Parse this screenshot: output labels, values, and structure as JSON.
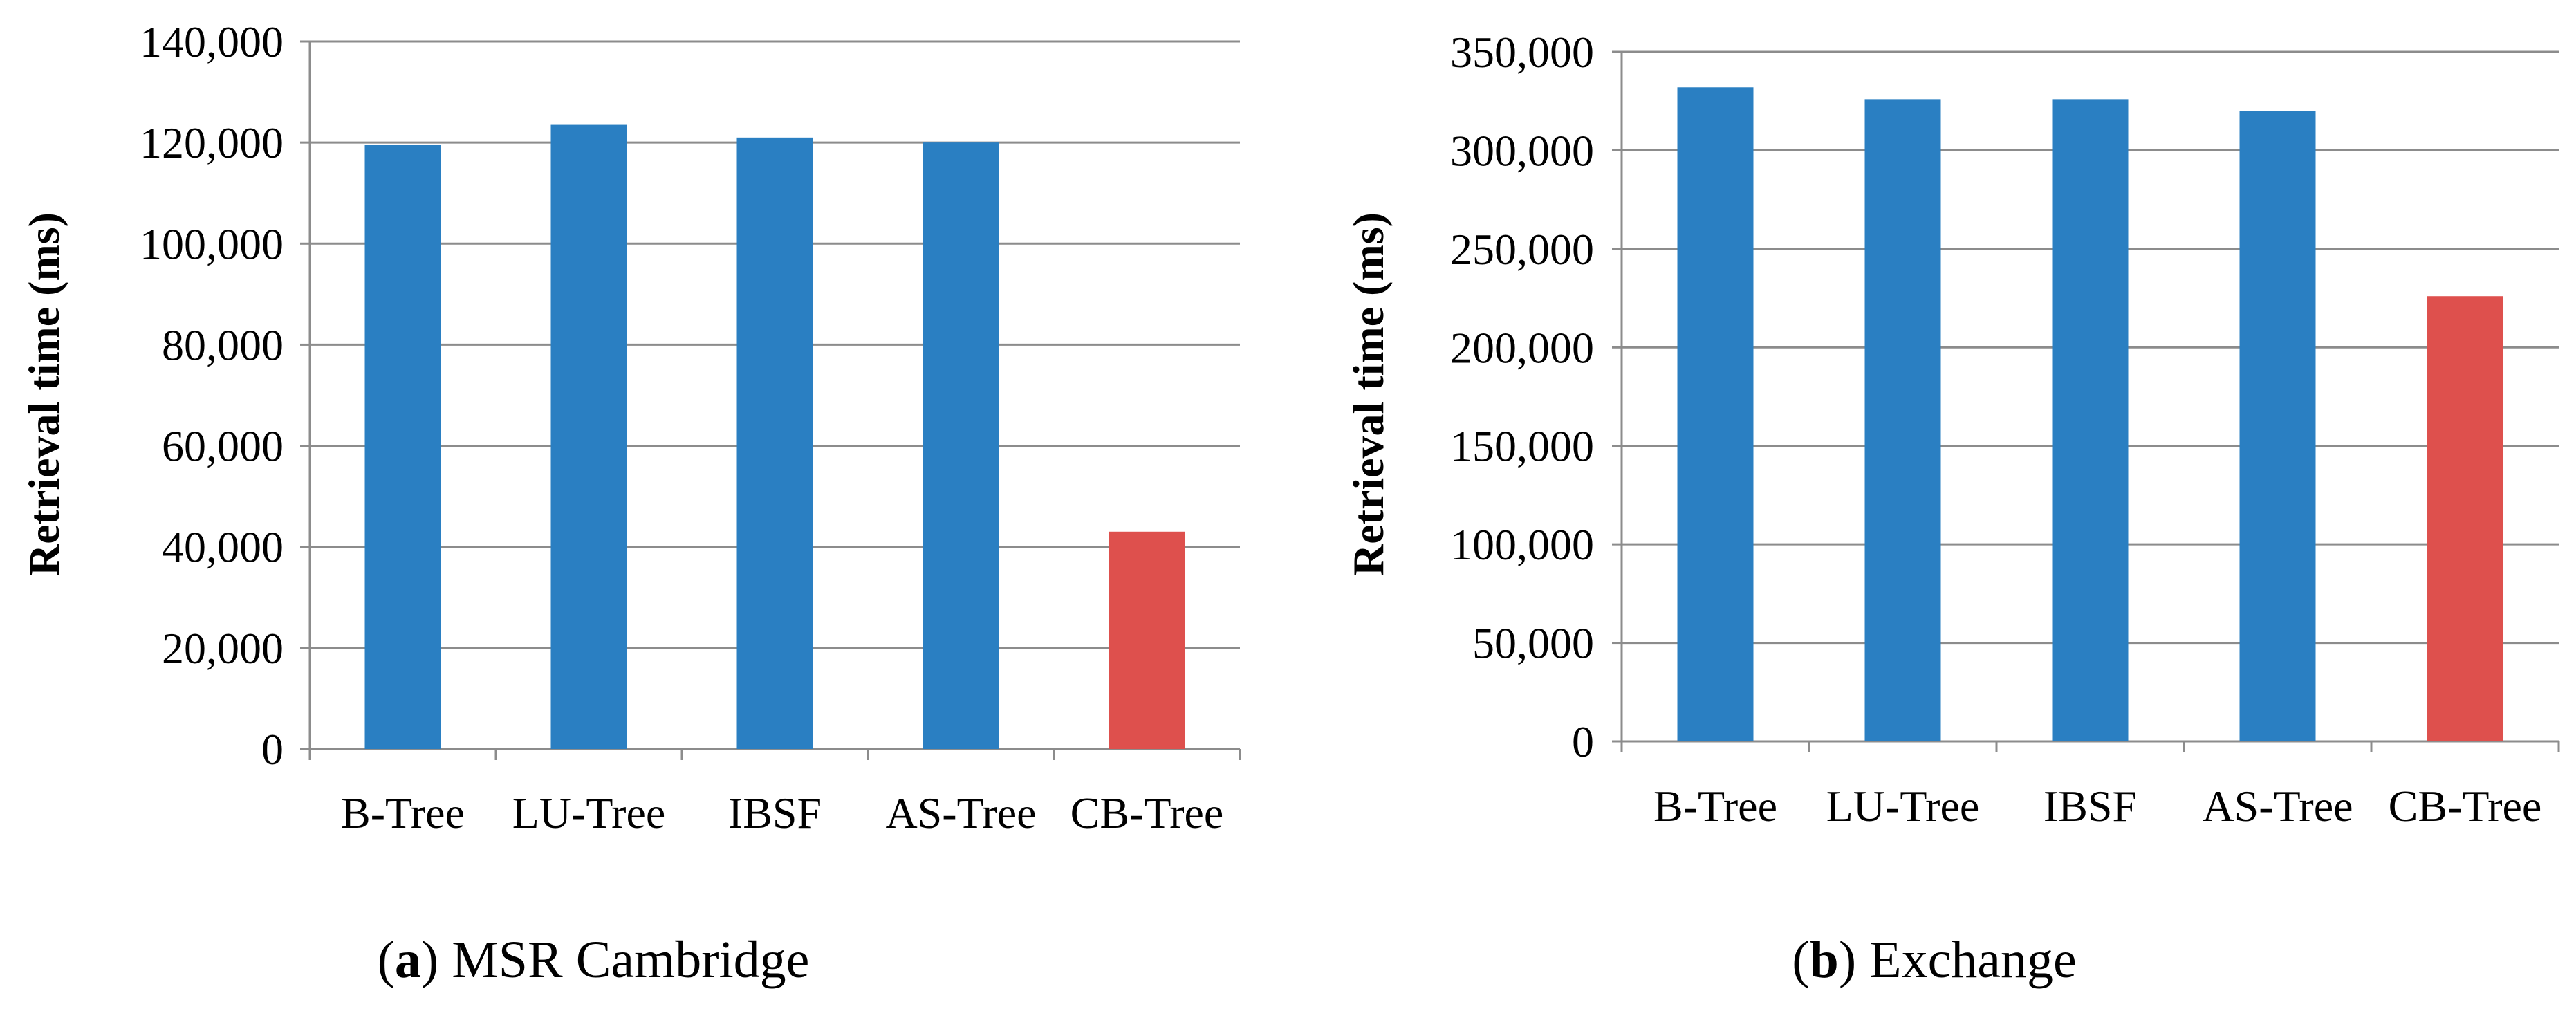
{
  "figure": {
    "panel_a": {
      "caption_open": "(",
      "caption_letter": "a",
      "caption_close": ")",
      "caption_text": " MSR Cambridge"
    },
    "panel_b": {
      "caption_open": "(",
      "caption_letter": "b",
      "caption_close": ")",
      "caption_text": " Exchange"
    }
  },
  "chart_data": [
    {
      "type": "bar",
      "title": "",
      "xlabel": "",
      "ylabel": "Retrieval time (ms)",
      "categories": [
        "B-Tree",
        "LU-Tree",
        "IBSF",
        "AS-Tree",
        "CB-Tree"
      ],
      "values": [
        119500,
        123500,
        121000,
        120000,
        43000
      ],
      "bar_colors": [
        "#2a7fc2",
        "#2a7fc2",
        "#2a7fc2",
        "#2a7fc2",
        "#de504d"
      ],
      "ylim": [
        0,
        140000
      ],
      "yticks": [
        0,
        20000,
        40000,
        60000,
        80000,
        100000,
        120000,
        140000
      ],
      "ytick_labels": [
        "0",
        "20,000",
        "40,000",
        "60,000",
        "80,000",
        "100,000",
        "120,000",
        "140,000"
      ],
      "grid": true,
      "legend": "none"
    },
    {
      "type": "bar",
      "title": "",
      "xlabel": "",
      "ylabel": "Retrieval time (ms)",
      "categories": [
        "B-Tree",
        "LU-Tree",
        "IBSF",
        "AS-Tree",
        "CB-Tree"
      ],
      "values": [
        332000,
        326000,
        326000,
        320000,
        226000
      ],
      "bar_colors": [
        "#2a7fc2",
        "#2a7fc2",
        "#2a7fc2",
        "#2a7fc2",
        "#de504d"
      ],
      "ylim": [
        0,
        350000
      ],
      "yticks": [
        0,
        50000,
        100000,
        150000,
        200000,
        250000,
        300000,
        350000
      ],
      "ytick_labels": [
        "0",
        "50,000",
        "100,000",
        "150,000",
        "200,000",
        "250,000",
        "300,000",
        "350,000"
      ],
      "grid": true,
      "legend": "none"
    }
  ]
}
